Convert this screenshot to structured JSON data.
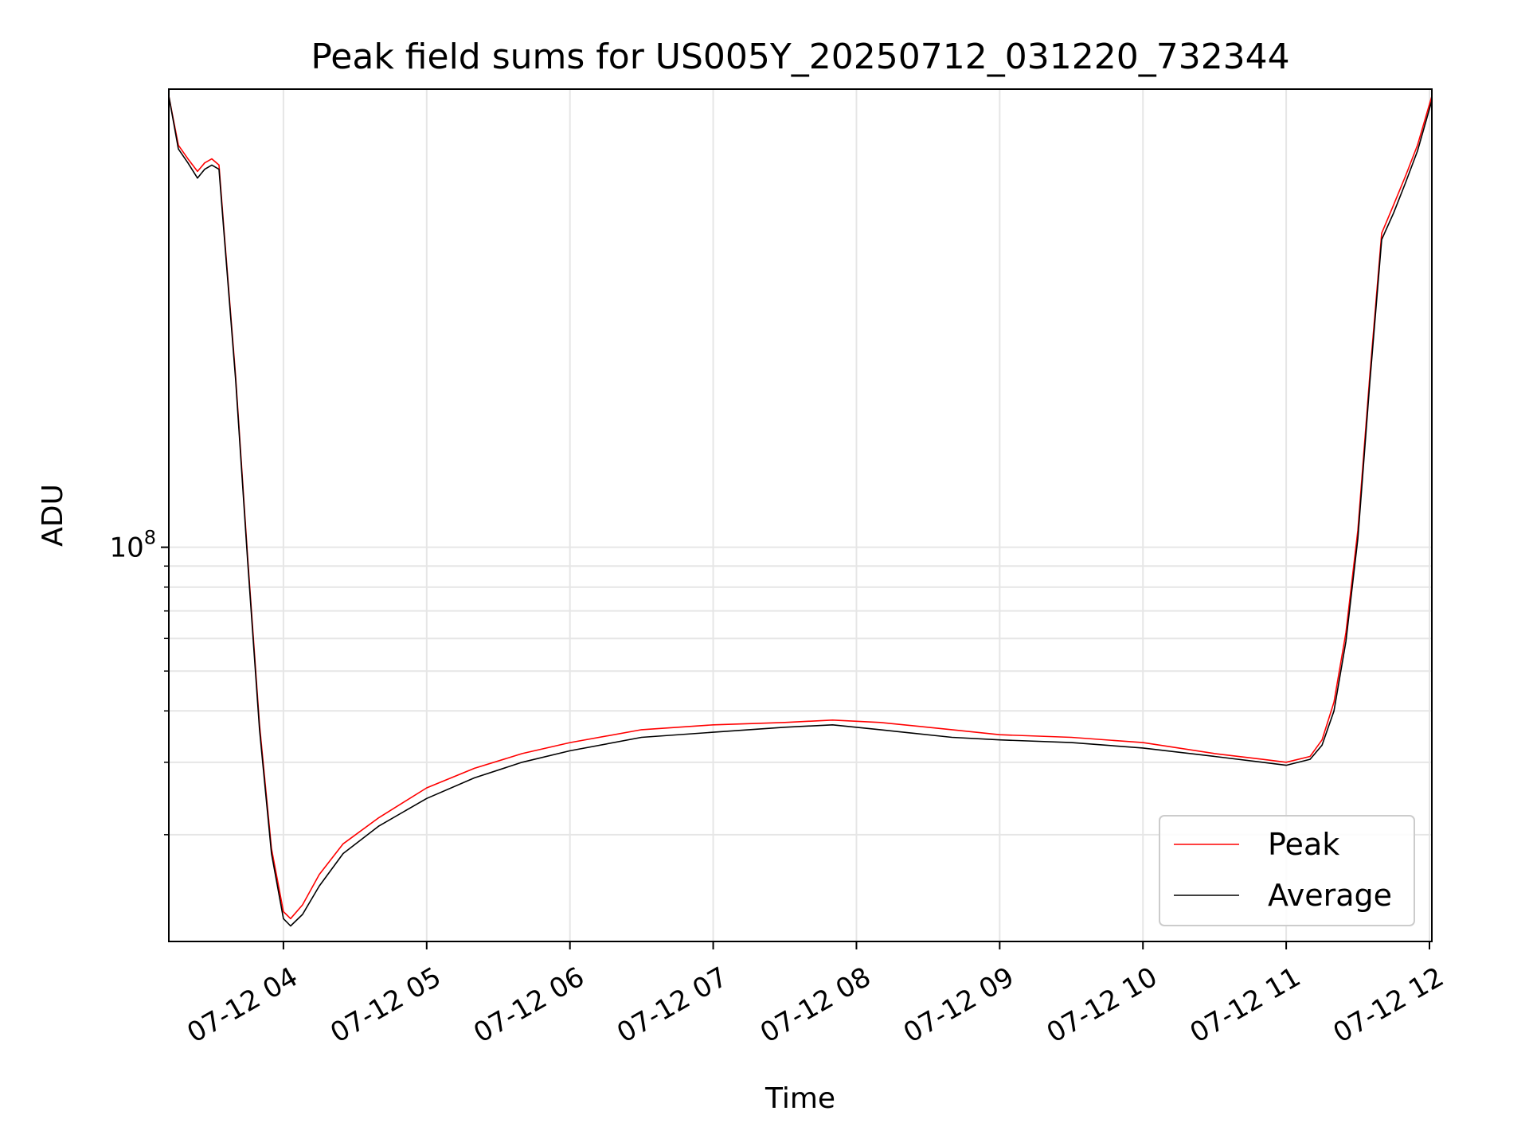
{
  "chart_data": {
    "type": "line",
    "title": "Peak field sums for US005Y_20250712_031220_732344",
    "xlabel": "Time",
    "ylabel": "ADU",
    "y_scale": "log",
    "y_ticks": [
      {
        "value": 100000000,
        "base": "10",
        "exp": "8"
      }
    ],
    "x_ticks": [
      "07-12 04",
      "07-12 05",
      "07-12 06",
      "07-12 07",
      "07-12 08",
      "07-12 09",
      "07-12 10",
      "07-12 11",
      "07-12 12"
    ],
    "xlim": [
      "2025-07-12 03:12",
      "2025-07-12 12:01"
    ],
    "ylim": [
      11000000,
      1300000000
    ],
    "grid": true,
    "legend_position": "lower right",
    "series": [
      {
        "name": "Peak",
        "color": "#ff0000",
        "x": [
          "2025-07-12 03:12",
          "2025-07-12 03:16",
          "2025-07-12 03:20",
          "2025-07-12 03:24",
          "2025-07-12 03:27",
          "2025-07-12 03:30",
          "2025-07-12 03:33",
          "2025-07-12 03:35",
          "2025-07-12 03:40",
          "2025-07-12 03:45",
          "2025-07-12 03:50",
          "2025-07-12 03:55",
          "2025-07-12 04:00",
          "2025-07-12 04:03",
          "2025-07-12 04:08",
          "2025-07-12 04:15",
          "2025-07-12 04:25",
          "2025-07-12 04:40",
          "2025-07-12 05:00",
          "2025-07-12 05:20",
          "2025-07-12 05:40",
          "2025-07-12 06:00",
          "2025-07-12 06:30",
          "2025-07-12 07:00",
          "2025-07-12 07:30",
          "2025-07-12 07:50",
          "2025-07-12 08:10",
          "2025-07-12 08:40",
          "2025-07-12 09:00",
          "2025-07-12 09:30",
          "2025-07-12 10:00",
          "2025-07-12 10:30",
          "2025-07-12 10:50",
          "2025-07-12 11:00",
          "2025-07-12 11:10",
          "2025-07-12 11:15",
          "2025-07-12 11:20",
          "2025-07-12 11:25",
          "2025-07-12 11:30",
          "2025-07-12 11:35",
          "2025-07-12 11:40",
          "2025-07-12 11:45",
          "2025-07-12 11:50",
          "2025-07-12 11:55",
          "2025-07-12 12:01"
        ],
        "y": [
          1250000000,
          950000000,
          880000000,
          820000000,
          860000000,
          880000000,
          850000000,
          600000000,
          260000000,
          95000000,
          37000000,
          18500000,
          13000000,
          12500000,
          13500000,
          16000000,
          19000000,
          22000000,
          26000000,
          29000000,
          31500000,
          33500000,
          36000000,
          37000000,
          37500000,
          38000000,
          37500000,
          36000000,
          35000000,
          34500000,
          33500000,
          31500000,
          30500000,
          30000000,
          31000000,
          34000000,
          42000000,
          62000000,
          110000000,
          260000000,
          580000000,
          680000000,
          800000000,
          950000000,
          1250000000
        ]
      },
      {
        "name": "Average",
        "color": "#000000",
        "x": [
          "2025-07-12 03:12",
          "2025-07-12 03:16",
          "2025-07-12 03:20",
          "2025-07-12 03:24",
          "2025-07-12 03:27",
          "2025-07-12 03:30",
          "2025-07-12 03:33",
          "2025-07-12 03:35",
          "2025-07-12 03:40",
          "2025-07-12 03:45",
          "2025-07-12 03:50",
          "2025-07-12 03:55",
          "2025-07-12 04:00",
          "2025-07-12 04:03",
          "2025-07-12 04:08",
          "2025-07-12 04:15",
          "2025-07-12 04:25",
          "2025-07-12 04:40",
          "2025-07-12 05:00",
          "2025-07-12 05:20",
          "2025-07-12 05:40",
          "2025-07-12 06:00",
          "2025-07-12 06:30",
          "2025-07-12 07:00",
          "2025-07-12 07:30",
          "2025-07-12 07:50",
          "2025-07-12 08:10",
          "2025-07-12 08:40",
          "2025-07-12 09:00",
          "2025-07-12 09:30",
          "2025-07-12 10:00",
          "2025-07-12 10:30",
          "2025-07-12 10:50",
          "2025-07-12 11:00",
          "2025-07-12 11:10",
          "2025-07-12 11:15",
          "2025-07-12 11:20",
          "2025-07-12 11:25",
          "2025-07-12 11:30",
          "2025-07-12 11:35",
          "2025-07-12 11:40",
          "2025-07-12 11:45",
          "2025-07-12 11:50",
          "2025-07-12 11:55",
          "2025-07-12 12:01"
        ],
        "y": [
          1250000000,
          930000000,
          860000000,
          790000000,
          830000000,
          850000000,
          830000000,
          590000000,
          255000000,
          93000000,
          36000000,
          18000000,
          12500000,
          12000000,
          12800000,
          15000000,
          18000000,
          21000000,
          24500000,
          27500000,
          30000000,
          32000000,
          34500000,
          35500000,
          36500000,
          37000000,
          36000000,
          34500000,
          34000000,
          33500000,
          32500000,
          31000000,
          30000000,
          29500000,
          30500000,
          33000000,
          40000000,
          59000000,
          105000000,
          250000000,
          560000000,
          650000000,
          770000000,
          920000000,
          1220000000
        ]
      }
    ]
  }
}
